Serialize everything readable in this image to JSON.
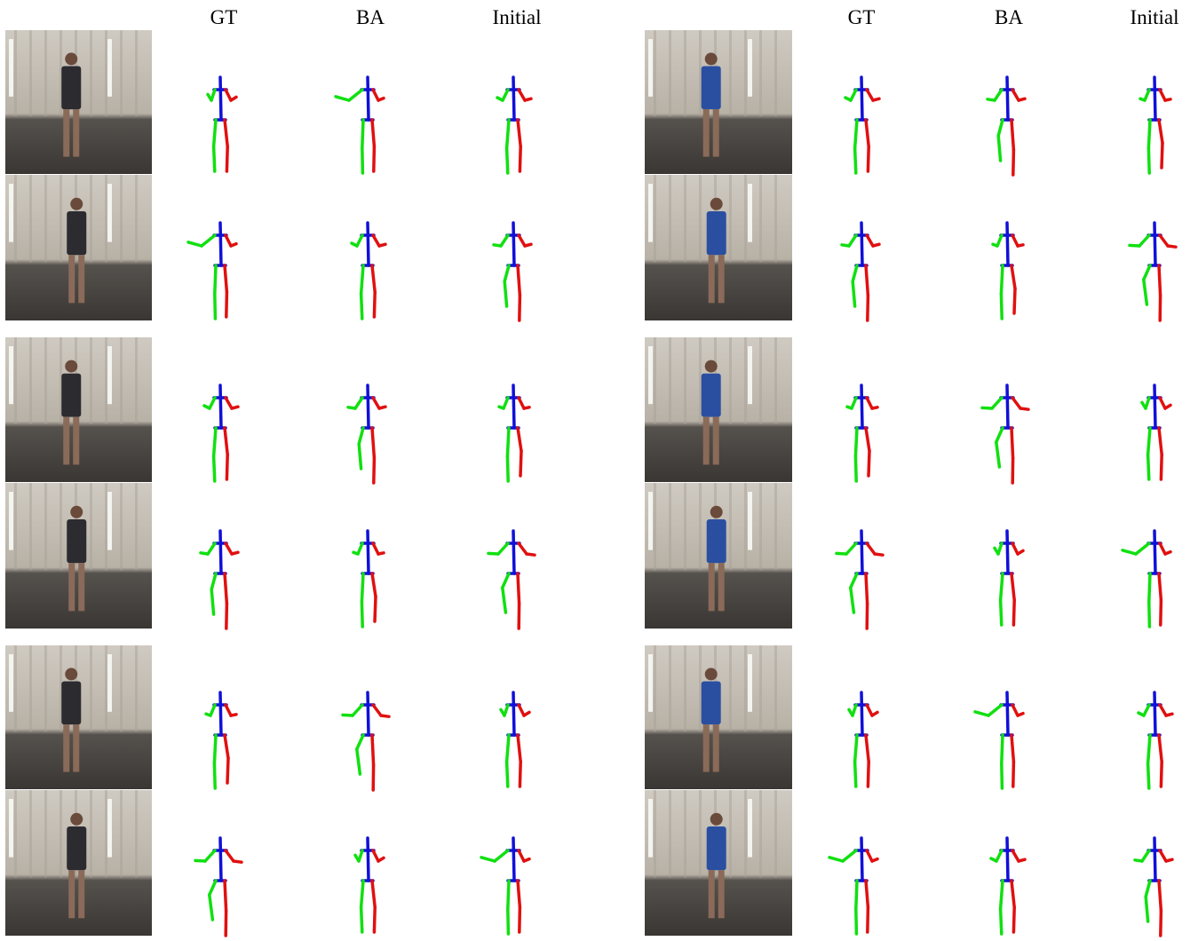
{
  "headers": {
    "left": [
      "GT",
      "BA",
      "Initial"
    ],
    "right": [
      "GT",
      "BA",
      "Initial"
    ]
  },
  "colors": {
    "spine": "#1010d8",
    "left_limbs": "#10e010",
    "right_limbs": "#e01010",
    "background": "#ffffff"
  },
  "icons": [
    "photo-frame",
    "pose-skeleton"
  ]
}
